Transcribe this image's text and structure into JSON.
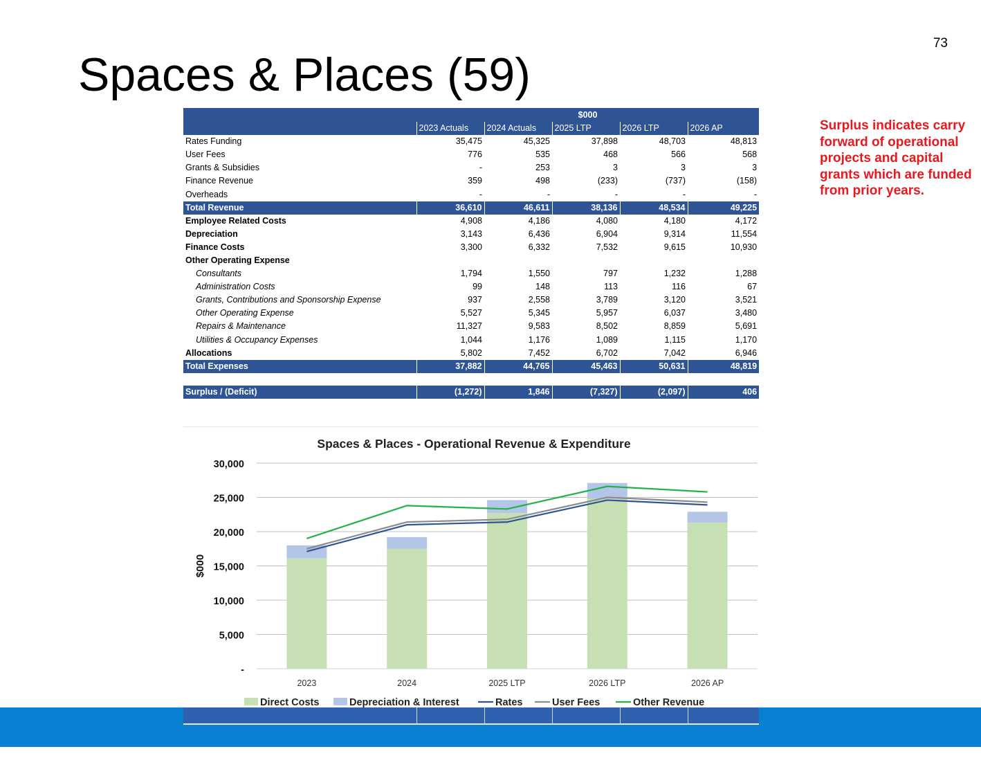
{
  "page_number": "73",
  "title": "Spaces & Places (59)",
  "note": "Surplus indicates carry forward of operational projects and capital grants which are funded from prior years.",
  "table": {
    "unit_header": "$000",
    "columns": [
      "2023 Actuals",
      "2024 Actuals",
      "2025 LTP",
      "2026 LTP",
      "2026 AP"
    ],
    "rows": [
      {
        "label": "Rates Funding",
        "values": [
          "35,475",
          "45,325",
          "37,898",
          "48,703",
          "48,813"
        ],
        "style": "normal"
      },
      {
        "label": "User Fees",
        "values": [
          "776",
          "535",
          "468",
          "566",
          "568"
        ],
        "style": "normal"
      },
      {
        "label": "Grants & Subsidies",
        "values": [
          "-",
          "253",
          "3",
          "3",
          "3"
        ],
        "style": "normal"
      },
      {
        "label": "Finance Revenue",
        "values": [
          "359",
          "498",
          "(233)",
          "(737)",
          "(158)"
        ],
        "style": "normal"
      },
      {
        "label": "Overheads",
        "values": [
          "-",
          "-",
          "-",
          "-",
          "-"
        ],
        "style": "normal"
      },
      {
        "label": "Total Revenue",
        "values": [
          "36,610",
          "46,611",
          "38,136",
          "48,534",
          "49,225"
        ],
        "style": "total"
      },
      {
        "label": "Employee Related Costs",
        "values": [
          "4,908",
          "4,186",
          "4,080",
          "4,180",
          "4,172"
        ],
        "style": "bold"
      },
      {
        "label": "Depreciation",
        "values": [
          "3,143",
          "6,436",
          "6,904",
          "9,314",
          "11,554"
        ],
        "style": "bold"
      },
      {
        "label": "Finance Costs",
        "values": [
          "3,300",
          "6,332",
          "7,532",
          "9,615",
          "10,930"
        ],
        "style": "bold"
      },
      {
        "label": "Other Operating  Expense",
        "values": [
          "",
          "",
          "",
          "",
          ""
        ],
        "style": "bold"
      },
      {
        "label": "Consultants",
        "values": [
          "1,794",
          "1,550",
          "797",
          "1,232",
          "1,288"
        ],
        "style": "sub"
      },
      {
        "label": "Administration Costs",
        "values": [
          "99",
          "148",
          "113",
          "116",
          "67"
        ],
        "style": "sub"
      },
      {
        "label": "Grants, Contributions and Sponsorship Expense",
        "values": [
          "937",
          "2,558",
          "3,789",
          "3,120",
          "3,521"
        ],
        "style": "sub"
      },
      {
        "label": "Other Operating Expense",
        "values": [
          "5,527",
          "5,345",
          "5,957",
          "6,037",
          "3,480"
        ],
        "style": "sub"
      },
      {
        "label": "Repairs & Maintenance",
        "values": [
          "11,327",
          "9,583",
          "8,502",
          "8,859",
          "5,691"
        ],
        "style": "sub"
      },
      {
        "label": "Utilities & Occupancy Expenses",
        "values": [
          "1,044",
          "1,176",
          "1,089",
          "1,115",
          "1,170"
        ],
        "style": "sub"
      },
      {
        "label": "Allocations",
        "values": [
          "5,802",
          "7,452",
          "6,702",
          "7,042",
          "6,946"
        ],
        "style": "bold"
      },
      {
        "label": "Total Expenses",
        "values": [
          "37,882",
          "44,765",
          "45,463",
          "50,631",
          "48,819"
        ],
        "style": "total"
      },
      {
        "label": "",
        "values": [
          "",
          "",
          "",
          "",
          ""
        ],
        "style": "spacer"
      },
      {
        "label": "Surplus / (Deficit)",
        "values": [
          "(1,272)",
          "1,846",
          "(7,327)",
          "(2,097)",
          "406"
        ],
        "style": "total"
      }
    ]
  },
  "chart_data": {
    "type": "bar",
    "title": "Spaces & Places - Operational Revenue & Expenditure",
    "ylabel": "$000",
    "xlabel": "",
    "categories": [
      "2023",
      "2024",
      "2025 LTP",
      "2026 LTP",
      "2026 AP"
    ],
    "ylim": [
      0,
      30000
    ],
    "yticks": [
      0,
      5000,
      10000,
      15000,
      20000,
      25000,
      30000
    ],
    "ytick_labels": [
      "-",
      "5,000",
      "10,000",
      "15,000",
      "20,000",
      "25,000",
      "30,000"
    ],
    "grid": true,
    "legend_position": "bottom",
    "bar_series": [
      {
        "name": "Direct Costs",
        "color": "#c6e0b4",
        "values": [
          16100,
          17500,
          22700,
          24800,
          21300
        ]
      },
      {
        "name": "Depreciation & Interest",
        "color": "#b4c6e7",
        "values": [
          1900,
          1700,
          1900,
          2300,
          1600
        ]
      }
    ],
    "line_series": [
      {
        "name": "Rates",
        "color": "#2f5496",
        "values": [
          17100,
          21000,
          21400,
          24600,
          23900
        ]
      },
      {
        "name": "User Fees",
        "color": "#8c8c8c",
        "values": [
          17500,
          21400,
          21800,
          25000,
          24300
        ]
      },
      {
        "name": "Other Revenue",
        "color": "#22b14c",
        "values": [
          19000,
          23800,
          23300,
          26600,
          25800
        ]
      }
    ]
  }
}
